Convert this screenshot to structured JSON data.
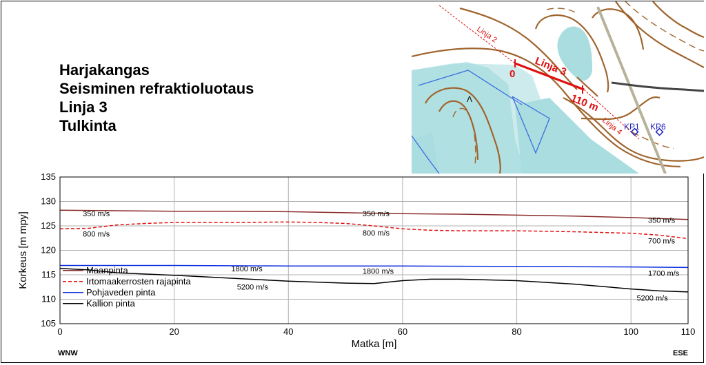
{
  "title_lines": [
    "Harjakangas",
    "Seisminen refraktioluotaus",
    "Linja 3",
    "Tulkinta"
  ],
  "map": {
    "labels": {
      "linja2": "Linja 2",
      "linja3": "Linja 3",
      "linja4": "Linja 4",
      "start": "0",
      "end": "110 m",
      "kp1": "KP1",
      "kp6": "KP6",
      "arrow": "Λ"
    },
    "colors": {
      "contour": "#a0642d",
      "water": "#a9dde0",
      "line": "#e01010",
      "marker": "#2222bb",
      "road": "#b7b39a"
    }
  },
  "chart_data": {
    "type": "line",
    "xlabel": "Matka [m]",
    "ylabel": "Korkeus [m mpy]",
    "xlim": [
      0,
      110
    ],
    "ylim": [
      105,
      135
    ],
    "xticks": [
      0,
      20,
      40,
      60,
      80,
      100,
      110
    ],
    "yticks": [
      105,
      110,
      115,
      120,
      125,
      130,
      135
    ],
    "grid": true,
    "legend_position": "bottom-left",
    "direction_left": "WNW",
    "direction_right": "ESE",
    "series": [
      {
        "name": "Maanpinta",
        "color": "#8b2a2a",
        "style": "solid",
        "x": [
          0,
          10,
          20,
          30,
          40,
          50,
          60,
          70,
          80,
          90,
          100,
          110
        ],
        "y": [
          128.2,
          128.1,
          128.0,
          128.0,
          127.9,
          127.7,
          127.5,
          127.4,
          127.2,
          127.0,
          126.7,
          126.3
        ]
      },
      {
        "name": "Irtomaakerrosten rajapinta",
        "color": "#e01010",
        "style": "dashed",
        "x": [
          0,
          5,
          10,
          15,
          20,
          30,
          40,
          45,
          50,
          55,
          60,
          65,
          70,
          80,
          90,
          100,
          105,
          110
        ],
        "y": [
          124.4,
          124.5,
          125.2,
          125.5,
          125.7,
          125.7,
          125.8,
          125.7,
          125.5,
          125.0,
          124.4,
          124.1,
          124.0,
          124.0,
          123.8,
          123.5,
          123.1,
          122.4
        ]
      },
      {
        "name": "Pohjaveden pinta",
        "color": "#1030e0",
        "style": "solid",
        "x": [
          0,
          20,
          40,
          60,
          80,
          100,
          110
        ],
        "y": [
          116.9,
          116.9,
          116.8,
          116.8,
          116.7,
          116.6,
          116.5
        ]
      },
      {
        "name": "Kallion pinta",
        "color": "#000000",
        "style": "solid",
        "x": [
          0,
          5,
          10,
          20,
          30,
          40,
          50,
          55,
          60,
          65,
          70,
          80,
          90,
          100,
          105,
          110
        ],
        "y": [
          116.3,
          116.0,
          115.4,
          114.9,
          114.3,
          113.7,
          113.3,
          113.2,
          113.8,
          114.1,
          114.1,
          113.8,
          113.1,
          112.1,
          111.7,
          111.5
        ]
      }
    ],
    "annotations": [
      {
        "text": "350 m/s",
        "x": 4,
        "y": 127.0
      },
      {
        "text": "800 m/s",
        "x": 4,
        "y": 122.8
      },
      {
        "text": "350 m/s",
        "x": 53,
        "y": 127.0
      },
      {
        "text": "800 m/s",
        "x": 53,
        "y": 123.0
      },
      {
        "text": "350 m/s",
        "x": 103,
        "y": 125.6
      },
      {
        "text": "700 m/s",
        "x": 103,
        "y": 121.4
      },
      {
        "text": "1800 m/s",
        "x": 30,
        "y": 115.7
      },
      {
        "text": "1800 m/s",
        "x": 53,
        "y": 115.2
      },
      {
        "text": "1700 m/s",
        "x": 103,
        "y": 114.8
      },
      {
        "text": "5200 m/s",
        "x": 31,
        "y": 112.0
      },
      {
        "text": "5200 m/s",
        "x": 101,
        "y": 109.7
      }
    ]
  }
}
